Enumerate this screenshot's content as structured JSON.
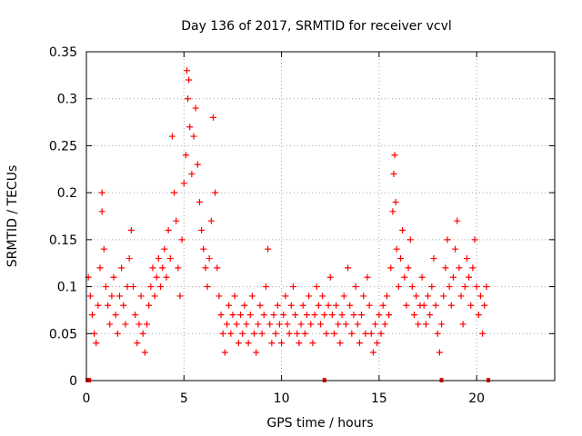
{
  "chart_data": {
    "type": "scatter",
    "title": "Day 136 of 2017, SRMTID for receiver vcvl",
    "xlabel": "GPS time / hours",
    "ylabel": "SRMTID / TECUs",
    "xlim": [
      0,
      24
    ],
    "ylim": [
      0,
      0.35
    ],
    "x_ticks": [
      0,
      5,
      10,
      15,
      20
    ],
    "y_ticks": [
      0,
      0.05,
      0.1,
      0.15,
      0.2,
      0.25,
      0.3,
      0.35
    ],
    "x_tick_labels": [
      "0",
      "5",
      "10",
      "15",
      "20"
    ],
    "y_tick_labels": [
      "0",
      "0.05",
      "0.1",
      "0.15",
      "0.2",
      "0.25",
      "0.3",
      "0.35"
    ],
    "grid": true,
    "marker": "+",
    "marker_color": "#ff0000",
    "baseline_marks_x": [
      0.05,
      0.15,
      12.2,
      18.2,
      20.6
    ],
    "series": [
      {
        "name": "SRMTID",
        "points": [
          [
            0.1,
            0.11
          ],
          [
            0.2,
            0.09
          ],
          [
            0.3,
            0.07
          ],
          [
            0.4,
            0.05
          ],
          [
            0.5,
            0.04
          ],
          [
            0.6,
            0.08
          ],
          [
            0.7,
            0.12
          ],
          [
            0.8,
            0.18
          ],
          [
            0.8,
            0.2
          ],
          [
            0.9,
            0.14
          ],
          [
            1.0,
            0.1
          ],
          [
            1.1,
            0.08
          ],
          [
            1.2,
            0.06
          ],
          [
            1.3,
            0.09
          ],
          [
            1.4,
            0.11
          ],
          [
            1.5,
            0.07
          ],
          [
            1.6,
            0.05
          ],
          [
            1.7,
            0.09
          ],
          [
            1.8,
            0.12
          ],
          [
            1.9,
            0.08
          ],
          [
            2.0,
            0.06
          ],
          [
            2.1,
            0.1
          ],
          [
            2.2,
            0.13
          ],
          [
            2.3,
            0.16
          ],
          [
            2.4,
            0.1
          ],
          [
            2.5,
            0.07
          ],
          [
            2.6,
            0.04
          ],
          [
            2.7,
            0.06
          ],
          [
            2.8,
            0.09
          ],
          [
            2.9,
            0.05
          ],
          [
            3.0,
            0.03
          ],
          [
            3.1,
            0.06
          ],
          [
            3.2,
            0.08
          ],
          [
            3.3,
            0.1
          ],
          [
            3.4,
            0.12
          ],
          [
            3.5,
            0.09
          ],
          [
            3.6,
            0.11
          ],
          [
            3.7,
            0.13
          ],
          [
            3.8,
            0.1
          ],
          [
            3.9,
            0.12
          ],
          [
            4.0,
            0.14
          ],
          [
            4.1,
            0.11
          ],
          [
            4.2,
            0.16
          ],
          [
            4.3,
            0.13
          ],
          [
            4.4,
            0.26
          ],
          [
            4.5,
            0.2
          ],
          [
            4.6,
            0.17
          ],
          [
            4.7,
            0.12
          ],
          [
            4.8,
            0.09
          ],
          [
            4.9,
            0.15
          ],
          [
            5.0,
            0.21
          ],
          [
            5.1,
            0.24
          ],
          [
            5.15,
            0.33
          ],
          [
            5.2,
            0.3
          ],
          [
            5.25,
            0.32
          ],
          [
            5.3,
            0.27
          ],
          [
            5.4,
            0.22
          ],
          [
            5.5,
            0.26
          ],
          [
            5.6,
            0.29
          ],
          [
            5.7,
            0.23
          ],
          [
            5.8,
            0.19
          ],
          [
            5.9,
            0.16
          ],
          [
            6.0,
            0.14
          ],
          [
            6.1,
            0.12
          ],
          [
            6.2,
            0.1
          ],
          [
            6.3,
            0.13
          ],
          [
            6.4,
            0.17
          ],
          [
            6.5,
            0.28
          ],
          [
            6.6,
            0.2
          ],
          [
            6.7,
            0.12
          ],
          [
            6.8,
            0.09
          ],
          [
            6.9,
            0.07
          ],
          [
            7.0,
            0.05
          ],
          [
            7.1,
            0.03
          ],
          [
            7.2,
            0.06
          ],
          [
            7.3,
            0.08
          ],
          [
            7.4,
            0.05
          ],
          [
            7.5,
            0.07
          ],
          [
            7.6,
            0.09
          ],
          [
            7.7,
            0.06
          ],
          [
            7.8,
            0.04
          ],
          [
            7.9,
            0.07
          ],
          [
            8.0,
            0.05
          ],
          [
            8.1,
            0.08
          ],
          [
            8.2,
            0.06
          ],
          [
            8.3,
            0.04
          ],
          [
            8.4,
            0.07
          ],
          [
            8.5,
            0.09
          ],
          [
            8.6,
            0.05
          ],
          [
            8.7,
            0.03
          ],
          [
            8.8,
            0.06
          ],
          [
            8.9,
            0.08
          ],
          [
            9.0,
            0.05
          ],
          [
            9.1,
            0.07
          ],
          [
            9.2,
            0.1
          ],
          [
            9.3,
            0.14
          ],
          [
            9.4,
            0.06
          ],
          [
            9.5,
            0.04
          ],
          [
            9.6,
            0.07
          ],
          [
            9.7,
            0.05
          ],
          [
            9.8,
            0.08
          ],
          [
            9.9,
            0.06
          ],
          [
            10.0,
            0.04
          ],
          [
            10.1,
            0.07
          ],
          [
            10.2,
            0.09
          ],
          [
            10.3,
            0.06
          ],
          [
            10.4,
            0.05
          ],
          [
            10.5,
            0.08
          ],
          [
            10.6,
            0.1
          ],
          [
            10.7,
            0.07
          ],
          [
            10.8,
            0.05
          ],
          [
            10.9,
            0.04
          ],
          [
            11.0,
            0.06
          ],
          [
            11.1,
            0.08
          ],
          [
            11.2,
            0.05
          ],
          [
            11.3,
            0.07
          ],
          [
            11.4,
            0.09
          ],
          [
            11.5,
            0.06
          ],
          [
            11.6,
            0.04
          ],
          [
            11.7,
            0.07
          ],
          [
            11.8,
            0.1
          ],
          [
            11.9,
            0.08
          ],
          [
            12.0,
            0.06
          ],
          [
            12.1,
            0.09
          ],
          [
            12.2,
            0.07
          ],
          [
            12.3,
            0.05
          ],
          [
            12.4,
            0.08
          ],
          [
            12.5,
            0.11
          ],
          [
            12.6,
            0.07
          ],
          [
            12.7,
            0.05
          ],
          [
            12.8,
            0.08
          ],
          [
            12.9,
            0.06
          ],
          [
            13.0,
            0.04
          ],
          [
            13.1,
            0.07
          ],
          [
            13.2,
            0.09
          ],
          [
            13.3,
            0.06
          ],
          [
            13.4,
            0.12
          ],
          [
            13.5,
            0.08
          ],
          [
            13.6,
            0.05
          ],
          [
            13.7,
            0.07
          ],
          [
            13.8,
            0.1
          ],
          [
            13.9,
            0.06
          ],
          [
            14.0,
            0.04
          ],
          [
            14.1,
            0.07
          ],
          [
            14.2,
            0.09
          ],
          [
            14.3,
            0.05
          ],
          [
            14.4,
            0.11
          ],
          [
            14.5,
            0.08
          ],
          [
            14.6,
            0.05
          ],
          [
            14.7,
            0.03
          ],
          [
            14.8,
            0.06
          ],
          [
            14.9,
            0.04
          ],
          [
            15.0,
            0.07
          ],
          [
            15.1,
            0.05
          ],
          [
            15.2,
            0.08
          ],
          [
            15.3,
            0.06
          ],
          [
            15.4,
            0.09
          ],
          [
            15.5,
            0.07
          ],
          [
            15.6,
            0.12
          ],
          [
            15.7,
            0.18
          ],
          [
            15.75,
            0.22
          ],
          [
            15.8,
            0.24
          ],
          [
            15.85,
            0.19
          ],
          [
            15.9,
            0.14
          ],
          [
            16.0,
            0.1
          ],
          [
            16.1,
            0.13
          ],
          [
            16.2,
            0.16
          ],
          [
            16.3,
            0.11
          ],
          [
            16.4,
            0.08
          ],
          [
            16.5,
            0.12
          ],
          [
            16.6,
            0.15
          ],
          [
            16.7,
            0.1
          ],
          [
            16.8,
            0.07
          ],
          [
            16.9,
            0.09
          ],
          [
            17.0,
            0.06
          ],
          [
            17.1,
            0.08
          ],
          [
            17.2,
            0.11
          ],
          [
            17.3,
            0.08
          ],
          [
            17.4,
            0.06
          ],
          [
            17.5,
            0.09
          ],
          [
            17.6,
            0.07
          ],
          [
            17.7,
            0.1
          ],
          [
            17.8,
            0.13
          ],
          [
            17.9,
            0.08
          ],
          [
            18.0,
            0.05
          ],
          [
            18.1,
            0.03
          ],
          [
            18.2,
            0.06
          ],
          [
            18.3,
            0.09
          ],
          [
            18.4,
            0.12
          ],
          [
            18.5,
            0.15
          ],
          [
            18.6,
            0.1
          ],
          [
            18.7,
            0.08
          ],
          [
            18.8,
            0.11
          ],
          [
            18.9,
            0.14
          ],
          [
            19.0,
            0.17
          ],
          [
            19.1,
            0.12
          ],
          [
            19.2,
            0.09
          ],
          [
            19.3,
            0.06
          ],
          [
            19.4,
            0.1
          ],
          [
            19.5,
            0.13
          ],
          [
            19.6,
            0.11
          ],
          [
            19.7,
            0.08
          ],
          [
            19.8,
            0.12
          ],
          [
            19.9,
            0.15
          ],
          [
            20.0,
            0.1
          ],
          [
            20.1,
            0.07
          ],
          [
            20.2,
            0.09
          ],
          [
            20.3,
            0.05
          ],
          [
            20.4,
            0.08
          ],
          [
            20.5,
            0.1
          ]
        ]
      }
    ]
  }
}
